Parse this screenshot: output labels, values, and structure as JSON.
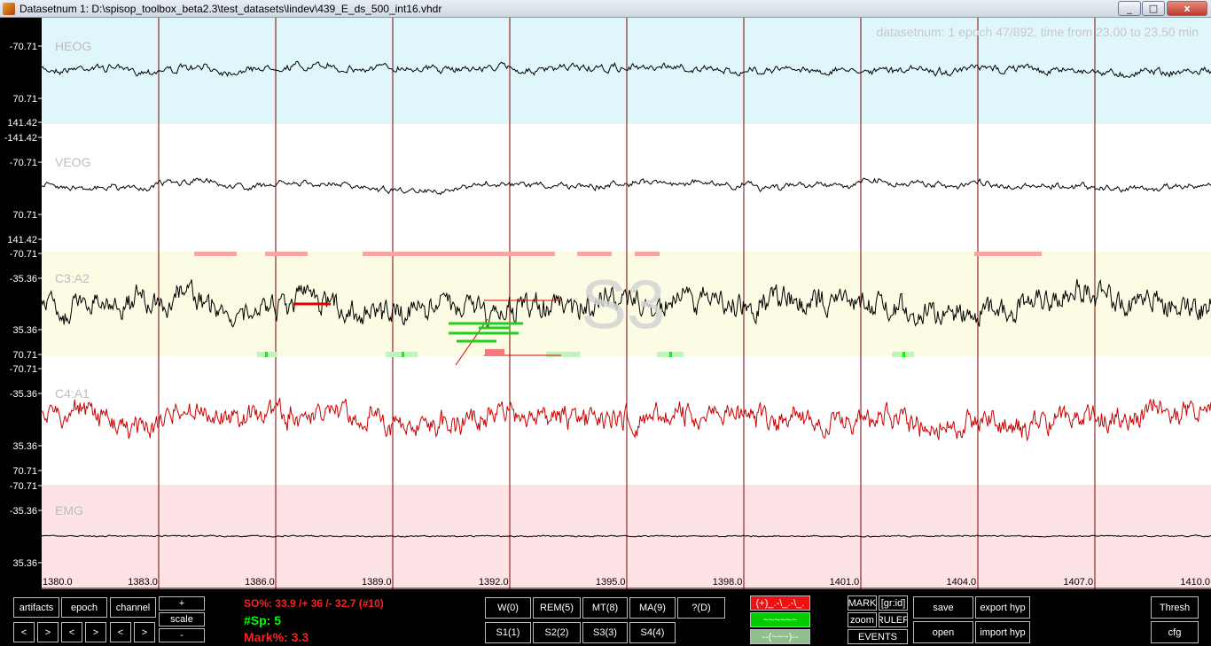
{
  "window": {
    "title": "Datasetnum 1: D:\\spisop_toolbox_beta2.3\\test_datasets\\lindev\\439_E_ds_500_int16.vhdr",
    "min": "_",
    "max": "□",
    "close": "x"
  },
  "info_text": "datasetnum: 1 epoch 47/892, time from 23.00 to 23.50 min",
  "stage_watermark": "S3",
  "channels": [
    {
      "name": "HEOG",
      "ticks": [
        "-70.71",
        "70.71",
        "141.42"
      ],
      "bg": "#dff7fb",
      "color": "#000000"
    },
    {
      "name": "VEOG",
      "ticks": [
        "-141.42",
        "-70.71",
        "70.71",
        "141.42"
      ],
      "bg": "#ffffff",
      "color": "#000000"
    },
    {
      "name": "C3:A2",
      "ticks": [
        "-70.71",
        "-35.36",
        "35.36",
        "70.71"
      ],
      "bg": "#fcfbe3",
      "color": "#000000"
    },
    {
      "name": "C4:A1",
      "ticks": [
        "-70.71",
        "-35.36",
        "35.36",
        "70.71"
      ],
      "bg": "#ffffff",
      "color": "#cc0000"
    },
    {
      "name": "EMG",
      "ticks": [
        "-70.71",
        "-35.36",
        "35.36"
      ],
      "bg": "#fde3e5",
      "color": "#000000"
    }
  ],
  "x_ticks": [
    "1380.0",
    "1383.0",
    "1386.0",
    "1389.0",
    "1392.0",
    "1395.0",
    "1398.0",
    "1401.0",
    "1404.0",
    "1407.0",
    "1410.0"
  ],
  "controls": {
    "artifacts": "artifacts",
    "epoch": "epoch",
    "channel": "channel",
    "plus": "+",
    "scale": "scale",
    "minus": "-",
    "prev": "<",
    "next": ">",
    "so_text": "SO%: 33.9 /+ 36 /- 32.7 (#10)",
    "sp_text": "#Sp: 5",
    "mark_text": "Mark%: 3.3",
    "stages_row1": [
      "W(0)",
      "REM(5)",
      "MT(8)",
      "MA(9)",
      "?(D)"
    ],
    "stages_row2": [
      "S1(1)",
      "S2(2)",
      "S3(3)",
      "S4(4)"
    ],
    "mode_buttons": [
      "(+)_.-\\_.-\\_.",
      "~~~~~~",
      "--(~~~)--"
    ],
    "mark": "MARK",
    "grid": "[gr:id]",
    "zoom": "zoom",
    "ruler": "RULER",
    "events": "EVENTS",
    "save": "save",
    "open": "open",
    "export_hyp": "export hyp",
    "import_hyp": "import hyp",
    "thresh": "Thresh",
    "cfg": "cfg"
  },
  "colors": {
    "accent_red": "#ff2020",
    "accent_green": "#00ff00",
    "epoch_line": "#7a0000"
  }
}
